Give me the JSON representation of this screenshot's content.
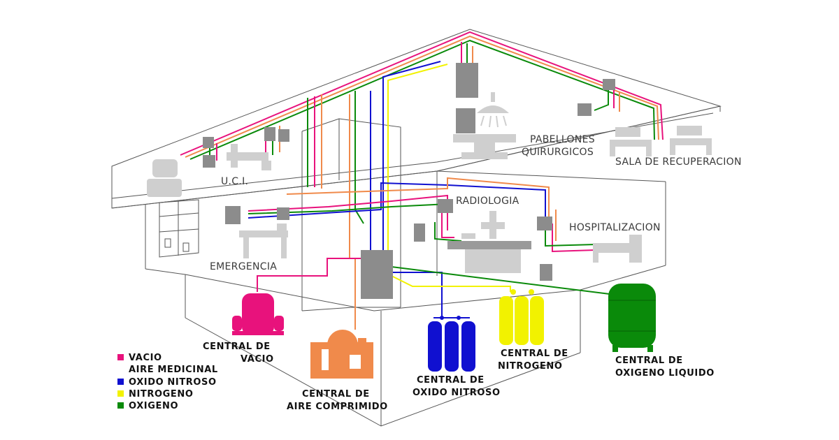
{
  "rooms": {
    "uci": "U.C.I.",
    "pabellones_line1": "PABELLONES",
    "pabellones_line2": "QUIRURGICOS",
    "sala_recuperacion": "SALA DE RECUPERACION",
    "radiologia": "RADIOLOGIA",
    "hospitalizacion": "HOSPITALIZACION",
    "emergencia": "EMERGENCIA"
  },
  "centrals": {
    "vacio": {
      "line1": "CENTRAL DE",
      "line2": "VACIO"
    },
    "aire": {
      "line1": "CENTRAL DE",
      "line2": "AIRE COMPRIMIDO"
    },
    "oxido": {
      "line1": "CENTRAL DE",
      "line2": "OXIDO NITROSO"
    },
    "nitrogeno": {
      "line1": "CENTRAL DE",
      "line2": "NITROGENO"
    },
    "oxigeno": {
      "line1": "CENTRAL DE",
      "line2": "OXIGENO LIQUIDO"
    }
  },
  "legend": [
    {
      "label": "VACIO",
      "color": "#e8127c",
      "swatch": true
    },
    {
      "label": "AIRE MEDICINAL",
      "color": "#f08a4b",
      "swatch": false
    },
    {
      "label": "OXIDO NITROSO",
      "color": "#1010d0",
      "swatch": true
    },
    {
      "label": "NITROGENO",
      "color": "#f2f200",
      "swatch": true
    },
    {
      "label": "OXIGENO",
      "color": "#0a8a0a",
      "swatch": true
    }
  ],
  "colors": {
    "vacio": "#e8127c",
    "aire": "#f08a4b",
    "oxido": "#1010d0",
    "nitrogeno": "#f2f200",
    "oxigeno": "#0a8a0a",
    "equipment": "#8c8c8c",
    "furniture": "#cfcfcf",
    "building": "#555555"
  }
}
